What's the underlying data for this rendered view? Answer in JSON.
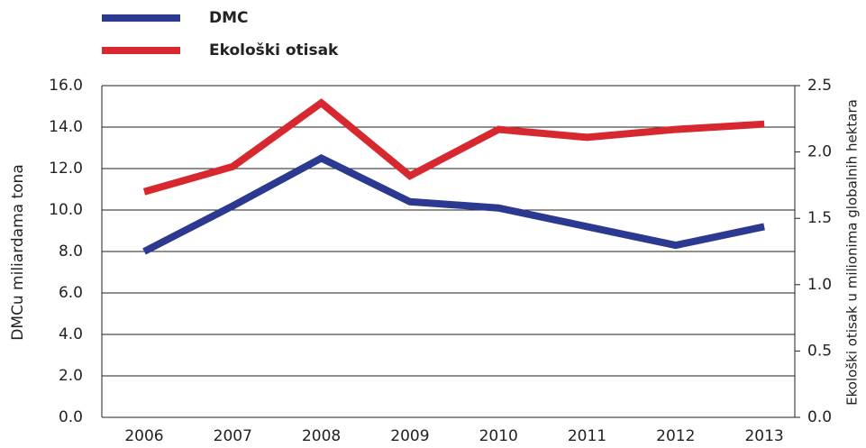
{
  "chart_data": {
    "type": "line",
    "y_label": "DMCu miliardama tona",
    "y2_label": "Ekološki otisak u milionima globalnih hektara",
    "categories": [
      "2006",
      "2007",
      "2008",
      "2009",
      "2010",
      "2011",
      "2012",
      "2013"
    ],
    "series": [
      {
        "name": "DMC",
        "color": "#2b3990",
        "values": [
          8.0,
          10.2,
          12.5,
          10.4,
          10.1,
          9.2,
          8.3,
          9.2
        ]
      },
      {
        "name": "Ekološki otisak",
        "color": "#d7282f",
        "axis": "y2",
        "values": [
          1.7,
          1.89,
          2.37,
          1.82,
          2.17,
          2.11,
          2.17,
          2.21
        ]
      }
    ],
    "ylim": [
      0,
      16
    ],
    "yticks": [
      {
        "value": 0,
        "label": "0.0"
      },
      {
        "value": 2,
        "label": "2.0"
      },
      {
        "value": 4,
        "label": "4.0"
      },
      {
        "value": 6,
        "label": "6.0"
      },
      {
        "value": 8,
        "label": "8.0"
      },
      {
        "value": 10,
        "label": "10.0"
      },
      {
        "value": 12,
        "label": "12.0"
      },
      {
        "value": 14,
        "label": "14.0"
      },
      {
        "value": 16,
        "label": "16.0"
      }
    ],
    "y2lim": [
      0,
      2.5
    ],
    "y2ticks": [
      {
        "value": 0,
        "label": "0.0"
      },
      0.5,
      {
        "value": 1,
        "label": "1.0"
      },
      1.5,
      {
        "value": 2,
        "label": "2.0"
      },
      2.5
    ],
    "grid": true
  }
}
